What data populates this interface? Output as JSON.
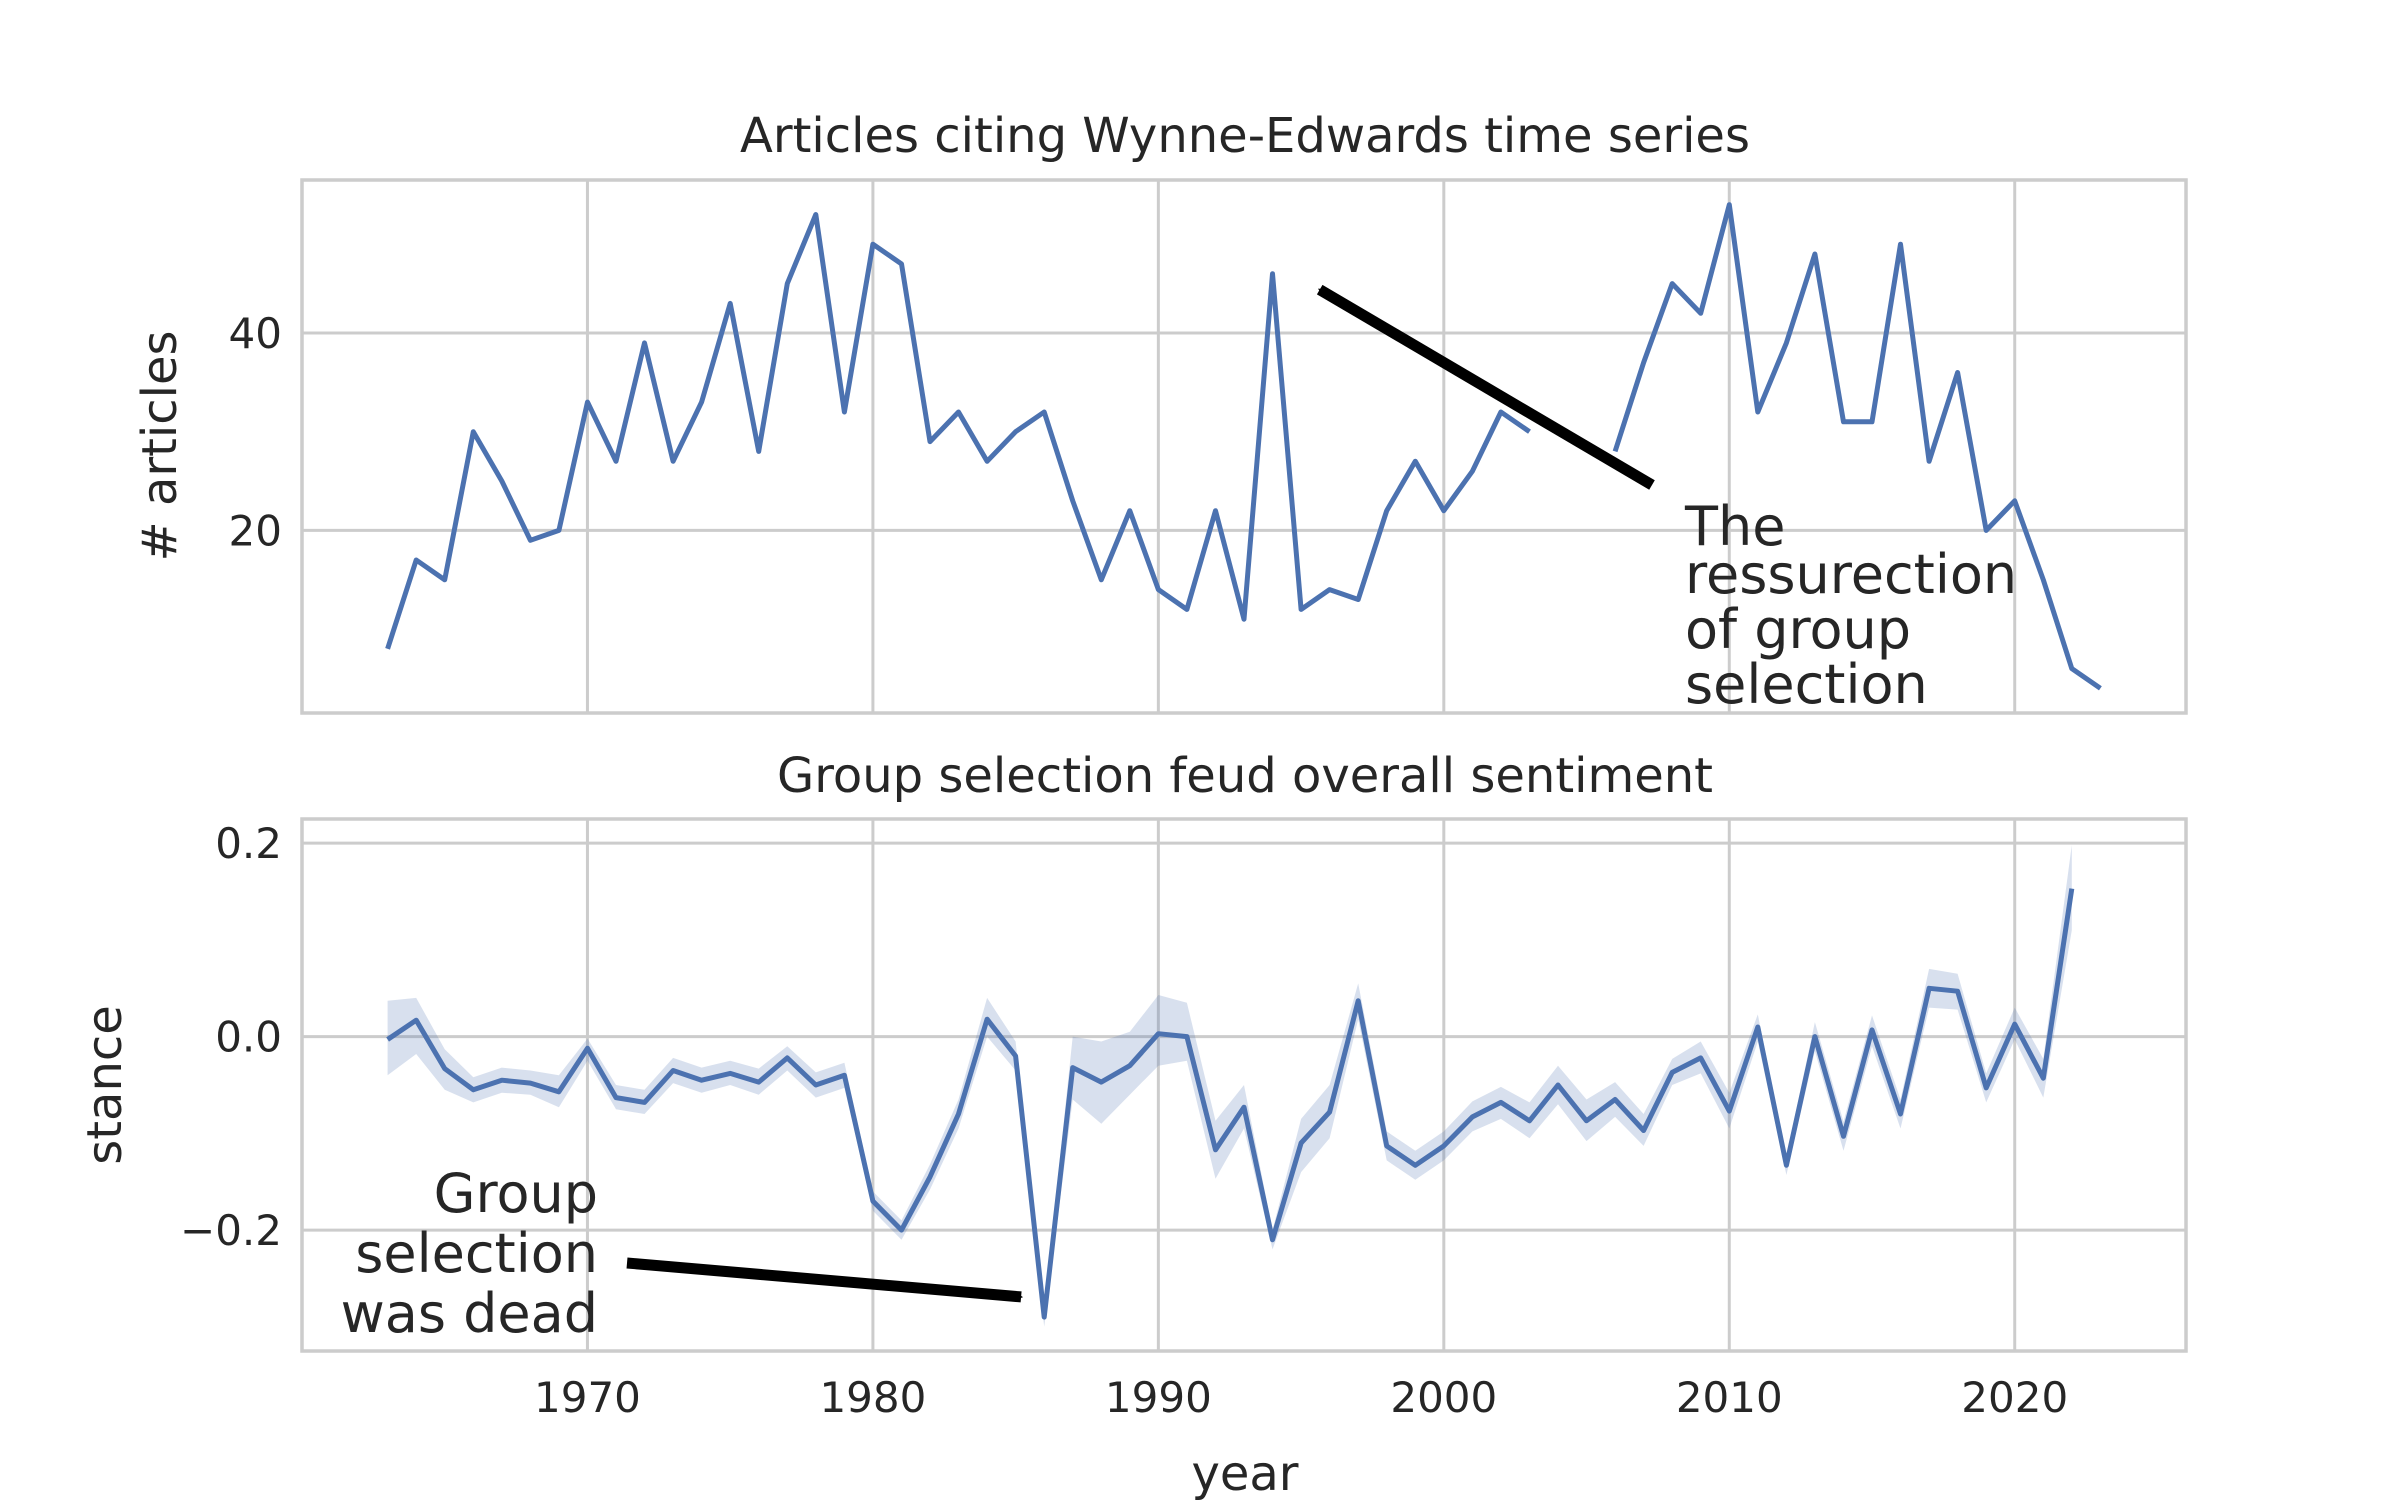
{
  "chart_data": [
    {
      "type": "line",
      "title": "Articles citing Wynne-Edwards time series",
      "xlabel": "",
      "ylabel": "# articles",
      "xlim": [
        1960,
        2026
      ],
      "ylim": [
        1.5,
        55.5
      ],
      "xticks": [
        1970,
        1980,
        1990,
        2000,
        2010,
        2020
      ],
      "yticks": [
        20,
        40
      ],
      "grid": true,
      "color": "#4c72b0",
      "series": [
        {
          "x": [
            1963,
            1964,
            1965,
            1966,
            1967,
            1968,
            1969,
            1970,
            1971,
            1972,
            1973,
            1974,
            1975,
            1976,
            1977,
            1978,
            1979,
            1980,
            1981,
            1982,
            1983,
            1984,
            1985,
            1986,
            1987,
            1988,
            1989,
            1990,
            1991,
            1992,
            1993,
            1994,
            1995,
            1996,
            1997,
            1998,
            1999,
            2000,
            2001,
            2002,
            2003,
            2006,
            2007,
            2008,
            2009,
            2010,
            2011,
            2012,
            2013,
            2014,
            2015,
            2016,
            2017,
            2018,
            2019,
            2020,
            2021,
            2022,
            2023
          ],
          "values": [
            8,
            17,
            15,
            30,
            25,
            19,
            20,
            33,
            27,
            39,
            27,
            33,
            43,
            28,
            45,
            52,
            32,
            49,
            47,
            29,
            32,
            27,
            30,
            32,
            23,
            15,
            22,
            14,
            12,
            22,
            11,
            46,
            12,
            14,
            13,
            22,
            27,
            22,
            26,
            32,
            30,
            28,
            37,
            45,
            42,
            53,
            32,
            39,
            48,
            31,
            31,
            49,
            27,
            36,
            20,
            23,
            15,
            6,
            4
          ]
        }
      ],
      "annotation": {
        "lines": [
          "The",
          "ressurection",
          "of group",
          "selection"
        ],
        "arrow_target": {
          "x": 1995.3,
          "y": 45
        }
      }
    },
    {
      "type": "line",
      "title": "Group selection feud overall sentiment",
      "xlabel": "year",
      "ylabel": "stance",
      "xlim": [
        1960,
        2026
      ],
      "ylim": [
        -0.325,
        0.225
      ],
      "xticks": [
        1970,
        1980,
        1990,
        2000,
        2010,
        2020
      ],
      "xticklabels": [
        "1970",
        "1980",
        "1990",
        "2000",
        "2010",
        "2020"
      ],
      "yticks": [
        0.2,
        0.0,
        -0.2
      ],
      "yticklabels": [
        "0.2",
        "0.0",
        "−0.2"
      ],
      "grid": true,
      "color": "#4c72b0",
      "band_color": "#4c72b0",
      "series": [
        {
          "x": [
            1963,
            1964,
            1965,
            1966,
            1967,
            1968,
            1969,
            1970,
            1971,
            1972,
            1973,
            1974,
            1975,
            1976,
            1977,
            1978,
            1979,
            1980,
            1981,
            1982,
            1983,
            1984,
            1985,
            1986,
            1987,
            1988,
            1989,
            1990,
            1991,
            1992,
            1993,
            1994,
            1995,
            1996,
            1997,
            1998,
            1999,
            2000,
            2001,
            2002,
            2003,
            2004,
            2005,
            2006,
            2007,
            2008,
            2009,
            2010,
            2011,
            2012,
            2013,
            2014,
            2015,
            2016,
            2017,
            2018,
            2019,
            2020,
            2021,
            2022
          ],
          "values": [
            -0.003,
            0.017,
            -0.033,
            -0.055,
            -0.045,
            -0.048,
            -0.057,
            -0.012,
            -0.063,
            -0.068,
            -0.035,
            -0.045,
            -0.038,
            -0.047,
            -0.022,
            -0.05,
            -0.04,
            -0.17,
            -0.2,
            -0.145,
            -0.08,
            0.018,
            -0.02,
            -0.29,
            -0.032,
            -0.047,
            -0.03,
            0.003,
            0.0,
            -0.117,
            -0.073,
            -0.21,
            -0.11,
            -0.078,
            0.037,
            -0.113,
            -0.133,
            -0.113,
            -0.083,
            -0.068,
            -0.087,
            -0.05,
            -0.087,
            -0.065,
            -0.097,
            -0.037,
            -0.022,
            -0.077,
            0.01,
            -0.133,
            0.0,
            -0.103,
            0.007,
            -0.08,
            0.05,
            0.047,
            -0.053,
            0.013,
            -0.043,
            0.153
          ],
          "ci_lower": [
            -0.04,
            -0.018,
            -0.055,
            -0.068,
            -0.058,
            -0.06,
            -0.073,
            -0.025,
            -0.075,
            -0.08,
            -0.048,
            -0.058,
            -0.05,
            -0.06,
            -0.035,
            -0.063,
            -0.053,
            -0.18,
            -0.21,
            -0.158,
            -0.095,
            0.0,
            -0.035,
            -0.3,
            -0.065,
            -0.09,
            -0.06,
            -0.03,
            -0.025,
            -0.147,
            -0.095,
            -0.22,
            -0.14,
            -0.105,
            0.018,
            -0.128,
            -0.148,
            -0.128,
            -0.098,
            -0.085,
            -0.105,
            -0.07,
            -0.108,
            -0.083,
            -0.113,
            -0.05,
            -0.038,
            -0.095,
            -0.005,
            -0.143,
            -0.015,
            -0.118,
            -0.01,
            -0.095,
            0.03,
            0.028,
            -0.068,
            -0.003,
            -0.063,
            0.11
          ],
          "ci_upper": [
            0.037,
            0.04,
            -0.013,
            -0.042,
            -0.032,
            -0.035,
            -0.04,
            -0.002,
            -0.05,
            -0.055,
            -0.022,
            -0.032,
            -0.025,
            -0.033,
            -0.01,
            -0.037,
            -0.027,
            -0.16,
            -0.19,
            -0.132,
            -0.065,
            0.04,
            -0.005,
            -0.28,
            0.0,
            -0.005,
            0.005,
            0.043,
            0.035,
            -0.087,
            -0.05,
            -0.2,
            -0.085,
            -0.05,
            0.055,
            -0.098,
            -0.118,
            -0.098,
            -0.067,
            -0.052,
            -0.068,
            -0.03,
            -0.065,
            -0.047,
            -0.08,
            -0.023,
            -0.005,
            -0.058,
            0.023,
            -0.123,
            0.015,
            -0.088,
            0.022,
            -0.065,
            0.07,
            0.065,
            -0.038,
            0.03,
            -0.023,
            0.198
          ]
        }
      ],
      "annotation": {
        "lines": [
          "Group",
          "selection",
          "was dead"
        ],
        "arrow_target": {
          "x": 1985.4,
          "y": -0.267
        }
      }
    }
  ]
}
